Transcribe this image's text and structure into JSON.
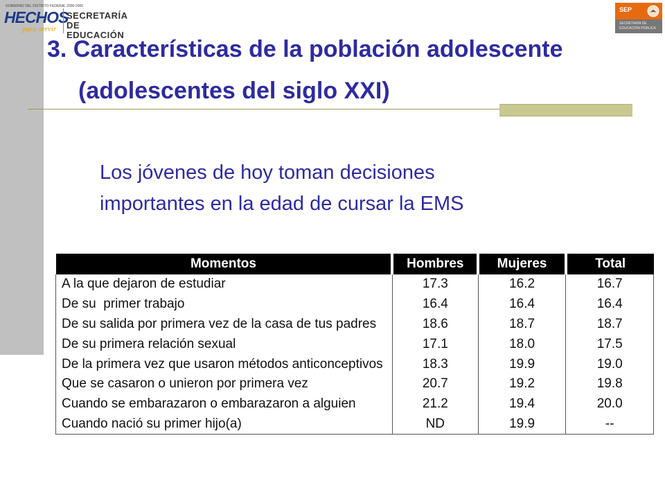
{
  "header": {
    "left_logo": {
      "small_text": "GOBIERNO DEL DISTRITO FEDERAL 2000-2006",
      "brand": "HECHOS",
      "tagline": "para servir",
      "dept_line1": "SECRETARÍA DE",
      "dept_line2": "EDUCACIÓN"
    },
    "right_logo": {
      "acronym": "SEP",
      "line1": "SECRETARÍA DE",
      "line2": "EDUCACIÓN PÚBLICA"
    }
  },
  "slide": {
    "title_line1": "3. Características de la población adolescente",
    "title_line2": "(adolescentes del siglo XXI)",
    "subtitle_line1": "Los jóvenes de hoy toman decisiones",
    "subtitle_line2": "importantes en la edad de cursar la EMS"
  },
  "table": {
    "headers": [
      "Momentos",
      "Hombres",
      "Mujeres",
      "Total"
    ],
    "rows": [
      [
        "A la que dejaron de estudiar",
        "17.3",
        "16.2",
        "16.7"
      ],
      [
        "De su  primer trabajo",
        "16.4",
        "16.4",
        "16.4"
      ],
      [
        "De su salida por primera vez de la casa de tus padres",
        "18.6",
        "18.7",
        "18.7"
      ],
      [
        "De su primera relación sexual",
        "17.1",
        "18.0",
        "17.5"
      ],
      [
        "De la primera vez que usaron métodos anticonceptivos",
        "18.3",
        "19.9",
        "19.0"
      ],
      [
        "Que se casaron o unieron por primera vez",
        "20.7",
        "19.2",
        "19.8"
      ],
      [
        "Cuando se embarazaron o embarazaron a alguien",
        "21.2",
        "19.4",
        "20.0"
      ],
      [
        "Cuando nació su primer hijo(a)",
        "ND",
        "19.9",
        "--"
      ]
    ]
  },
  "colors": {
    "title": "#2e2ba0",
    "sidebar": "#c0c0c0",
    "accent_bar": "#c8c890"
  }
}
